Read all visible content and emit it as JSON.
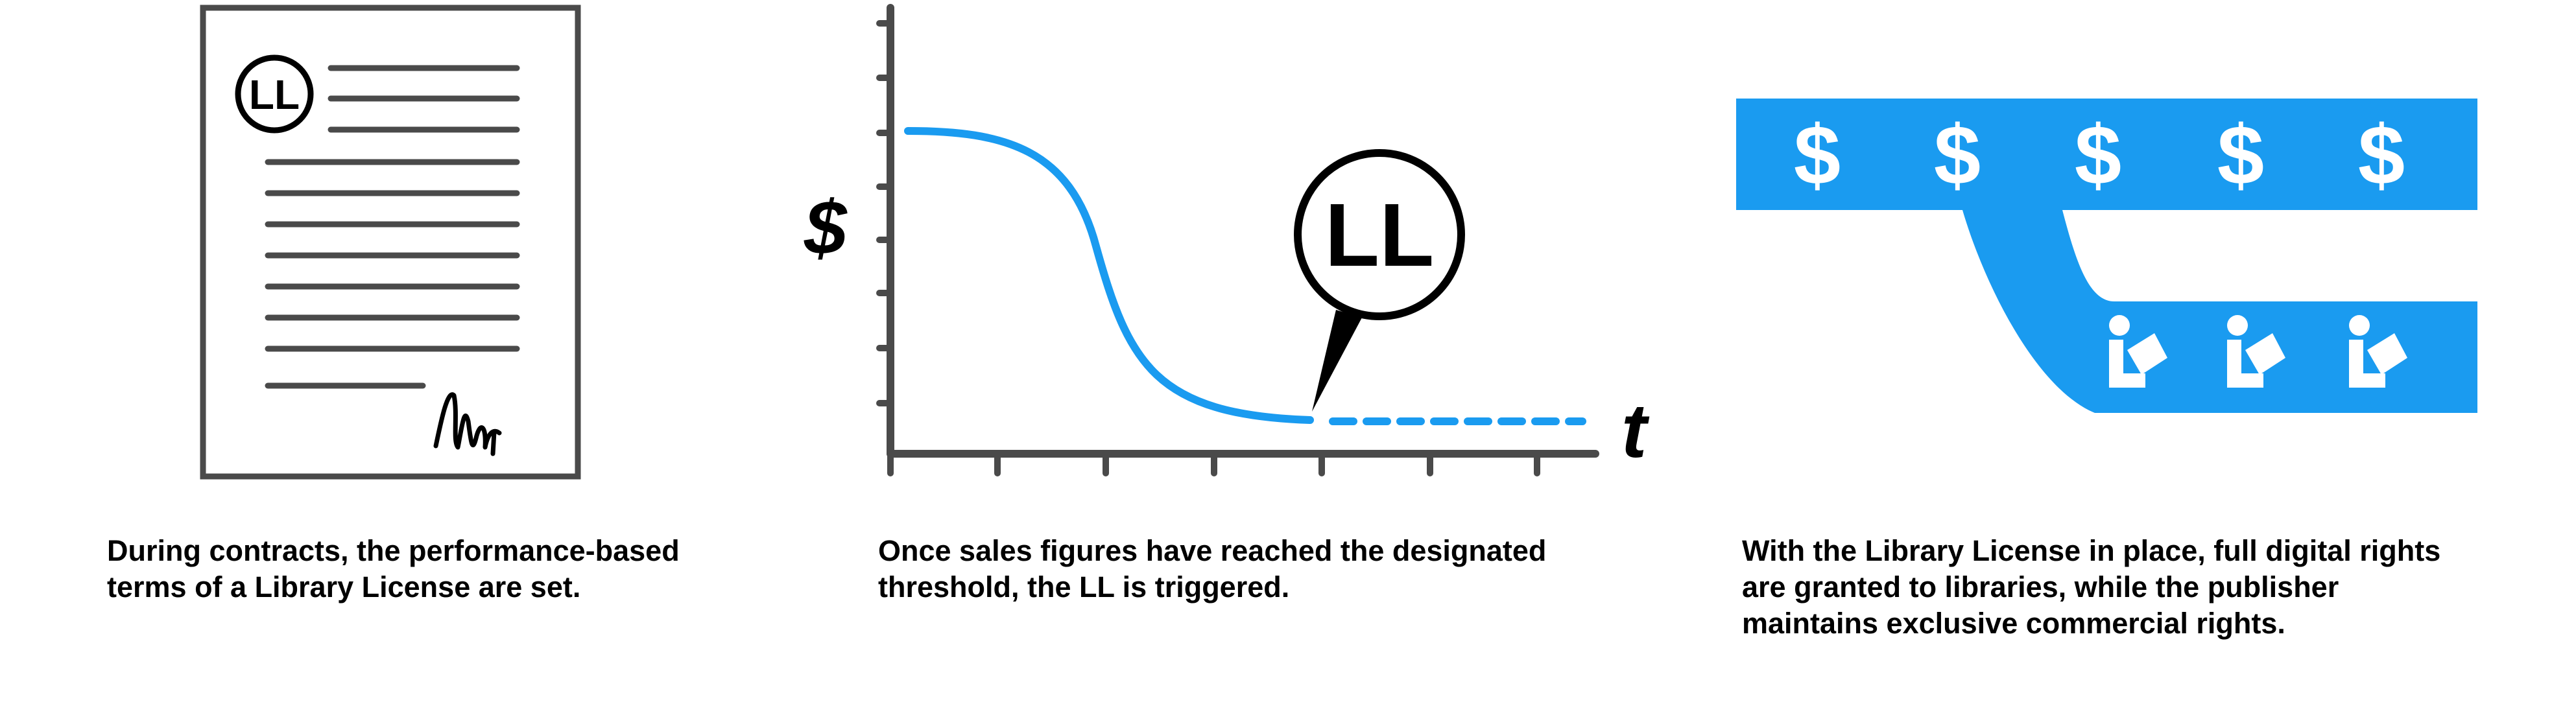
{
  "colors": {
    "accent": "#1a9bf0",
    "ink": "#000000",
    "gray": "#4a4a4a",
    "line": "#555555"
  },
  "panel1": {
    "badge": "LL",
    "caption_lines": [
      "During contracts, the performance-based",
      "terms of a Library License are set."
    ]
  },
  "panel2": {
    "y_axis_symbol": "$",
    "x_axis_symbol": "t",
    "callout": "LL",
    "caption_lines": [
      "Once sales figures have reached the designated",
      "threshold, the LL is triggered."
    ],
    "curve": {
      "description_type": "line",
      "x_ticks": 7,
      "y_ticks": 8
    }
  },
  "panel3": {
    "currency_symbols": [
      "$",
      "$",
      "$",
      "$",
      "$"
    ],
    "reader_icon_count": 3,
    "caption_lines": [
      "With the Library License in place, full digital rights",
      "are granted to libraries, while the publisher",
      "maintains exclusive commercial rights."
    ]
  }
}
